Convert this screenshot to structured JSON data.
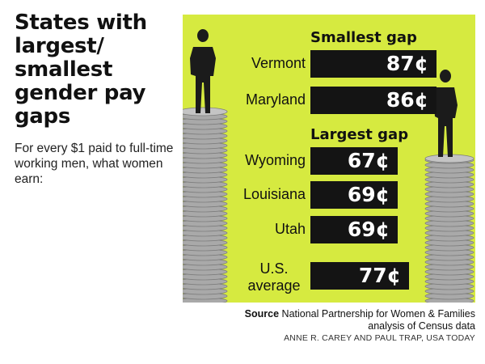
{
  "title": "States with largest/ smallest gender pay gaps",
  "subtitle": "For every $1 paid to full-time working men, what women earn:",
  "smallest_label": "Smallest gap",
  "largest_label": "Largest gap",
  "source_label": "Source",
  "source_text": "National Partnership for Women & Families analysis of Census data",
  "credit": "ANNE R. CAREY AND PAUL TRAP, USA TODAY",
  "colors": {
    "panel": "#d6ea40",
    "bar": "#141414",
    "bar_text": "#ffffff",
    "coins": "#a8a8a8"
  },
  "chart_data": {
    "type": "bar",
    "unit": "¢",
    "groups": [
      "Smallest gap",
      "Largest gap",
      "U.S. average"
    ],
    "categories": [
      "Vermont",
      "Maryland",
      "Wyoming",
      "Louisiana",
      "Utah",
      "U.S. average"
    ],
    "values": [
      87,
      86,
      67,
      69,
      69,
      77
    ],
    "labels": [
      "87¢",
      "86¢",
      "67¢",
      "69¢",
      "69¢",
      "77¢"
    ],
    "group_of": [
      "Smallest gap",
      "Smallest gap",
      "Largest gap",
      "Largest gap",
      "Largest gap",
      "U.S. average"
    ],
    "xlim": [
      60,
      90
    ]
  }
}
